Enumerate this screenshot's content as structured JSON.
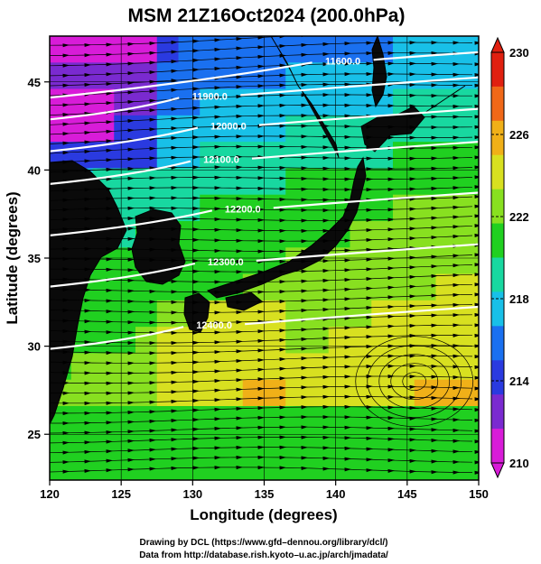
{
  "chart_data": {
    "type": "heatmap",
    "title": "MSM 21Z16Oct2024 (200.0hPa)",
    "xlabel": "Longitude (degrees)",
    "ylabel": "Latitude  (degrees)",
    "xlim": [
      120,
      150
    ],
    "ylim": [
      22.4,
      47.6
    ],
    "xticks": [
      120,
      125,
      130,
      135,
      140,
      145,
      150
    ],
    "xtick_labels": [
      "120",
      "125",
      "130",
      "135",
      "140",
      "145",
      "150"
    ],
    "yticks": [
      25,
      30,
      35,
      40,
      45
    ],
    "ytick_labels": [
      "25",
      "30",
      "35",
      "40",
      "45"
    ],
    "colorbar": {
      "range": [
        210,
        230
      ],
      "ticks": [
        210,
        214,
        218,
        222,
        226,
        230
      ],
      "tick_labels": [
        "210",
        "214",
        "218",
        "222",
        "226",
        "230"
      ],
      "colors": [
        "#d81cd8",
        "#7a2ad0",
        "#2a3ae0",
        "#1a70f0",
        "#18c0e8",
        "#18d8a0",
        "#20d020",
        "#88e020",
        "#d8e020",
        "#f0b018",
        "#f06818",
        "#e02010"
      ]
    },
    "contours": [
      {
        "label": "11600.0",
        "lon": 140.5,
        "lat": 46.2
      },
      {
        "label": "11900.0",
        "lon": 131.2,
        "lat": 44.2
      },
      {
        "label": "12000.0",
        "lon": 132.5,
        "lat": 42.5
      },
      {
        "label": "12100.0",
        "lon": 132.0,
        "lat": 40.6
      },
      {
        "label": "12200.0",
        "lon": 133.5,
        "lat": 37.8
      },
      {
        "label": "12300.0",
        "lon": 132.3,
        "lat": 34.8
      },
      {
        "label": "12400.0",
        "lon": 131.5,
        "lat": 31.2
      }
    ],
    "grid": true,
    "overlay": "streamlines"
  },
  "credits": {
    "line1": "Drawing by DCL (https://www.gfd–dennou.org/library/dcl/)",
    "line2": "Data from http://database.rish.kyoto–u.ac.jp/arch/jmadata/"
  }
}
